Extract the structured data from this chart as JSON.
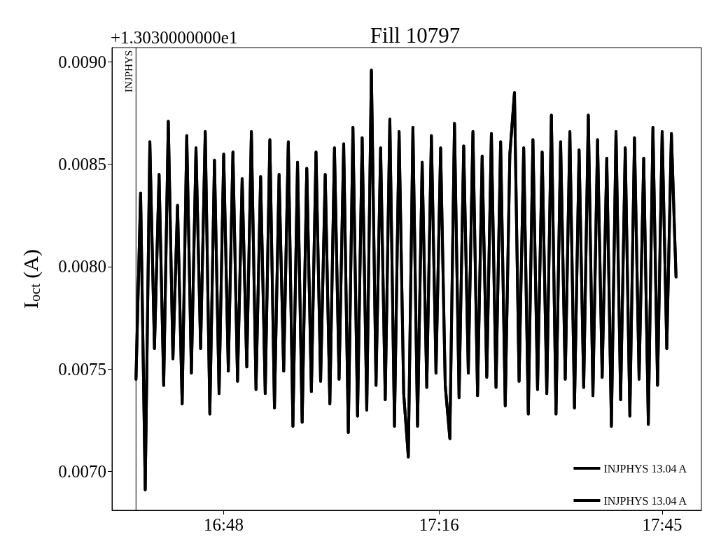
{
  "chart_data": {
    "type": "line",
    "title": "Fill 10797",
    "ylabel": "I$_{oct}$ (A)",
    "annotations": [
      "+1.3030000000e1"
    ],
    "x": [
      16.61,
      16.62,
      16.63,
      16.64,
      16.65,
      16.66,
      16.67,
      16.68,
      16.69,
      16.7,
      16.71,
      16.72,
      16.73,
      16.74,
      16.75,
      16.76,
      16.77,
      16.78,
      16.79,
      16.8,
      16.81,
      16.82,
      16.83,
      16.84,
      16.85,
      16.86,
      16.87,
      16.88,
      16.89,
      16.9,
      16.91,
      16.92,
      16.93,
      16.94,
      16.95,
      16.96,
      16.97,
      16.98,
      16.99,
      17.0,
      17.01,
      17.02,
      17.03,
      17.04,
      17.05,
      17.06,
      17.07,
      17.08,
      17.09,
      17.1,
      17.11,
      17.12,
      17.13,
      17.14,
      17.15,
      17.16,
      17.17,
      17.18,
      17.19,
      17.2,
      17.21,
      17.22,
      17.23,
      17.24,
      17.25,
      17.26,
      17.27,
      17.28,
      17.29,
      17.3,
      17.31,
      17.32,
      17.33,
      17.34,
      17.35,
      17.36,
      17.37,
      17.38,
      17.39,
      17.4,
      17.41,
      17.42,
      17.43,
      17.44,
      17.45,
      17.46,
      17.47,
      17.48,
      17.49,
      17.5,
      17.51,
      17.52,
      17.53,
      17.54,
      17.55,
      17.56,
      17.57,
      17.58,
      17.59,
      17.6,
      17.61,
      17.62,
      17.63,
      17.64,
      17.65,
      17.66,
      17.67,
      17.68,
      17.69,
      17.7,
      17.71,
      17.72,
      17.73,
      17.74,
      17.75,
      17.76,
      17.77,
      17.78
    ],
    "series": [
      {
        "name": "INJPHYS 13.04 A",
        "color": "#000000",
        "values": [
          0.00745,
          0.00836,
          0.00691,
          0.00861,
          0.0076,
          0.00845,
          0.00742,
          0.00871,
          0.00755,
          0.0083,
          0.00733,
          0.00864,
          0.00748,
          0.00858,
          0.0076,
          0.00866,
          0.00728,
          0.00852,
          0.00738,
          0.00855,
          0.00749,
          0.00856,
          0.00744,
          0.00843,
          0.00751,
          0.00866,
          0.0074,
          0.00844,
          0.00738,
          0.00862,
          0.00731,
          0.00845,
          0.00749,
          0.00861,
          0.00722,
          0.00851,
          0.00724,
          0.00848,
          0.00739,
          0.00856,
          0.00744,
          0.00845,
          0.00733,
          0.00858,
          0.00745,
          0.0086,
          0.00719,
          0.00868,
          0.00727,
          0.00863,
          0.0073,
          0.00896,
          0.00742,
          0.00858,
          0.00735,
          0.00872,
          0.00722,
          0.00866,
          0.00738,
          0.00707,
          0.00868,
          0.00722,
          0.00851,
          0.00741,
          0.00864,
          0.00748,
          0.00858,
          0.00742,
          0.00716,
          0.0087,
          0.00736,
          0.00859,
          0.00748,
          0.00866,
          0.00737,
          0.00854,
          0.00746,
          0.00865,
          0.00741,
          0.00861,
          0.00732,
          0.00855,
          0.00885,
          0.00744,
          0.00858,
          0.00728,
          0.00862,
          0.0074,
          0.00856,
          0.00738,
          0.00874,
          0.00728,
          0.00861,
          0.00745,
          0.00866,
          0.00731,
          0.00857,
          0.00741,
          0.00874,
          0.00737,
          0.00862,
          0.00746,
          0.00853,
          0.00722,
          0.00866,
          0.00735,
          0.00858,
          0.00727,
          0.00863,
          0.00745,
          0.00853,
          0.00723,
          0.00868,
          0.00742,
          0.00866,
          0.0076,
          0.00865,
          0.00795
        ]
      },
      {
        "name": "INJPHYS 13.04 A",
        "color": "#000000",
        "values": [
          0.00745,
          0.00836,
          0.00691,
          0.00861,
          0.0076,
          0.00845,
          0.00742,
          0.00871,
          0.00755,
          0.0083,
          0.00733,
          0.00864,
          0.00748,
          0.00858,
          0.0076,
          0.00866,
          0.00728,
          0.00852,
          0.00738,
          0.00855,
          0.00749,
          0.00856,
          0.00744,
          0.00843,
          0.00751,
          0.00866,
          0.0074,
          0.00844,
          0.00738,
          0.00862,
          0.00731,
          0.00845,
          0.00749,
          0.00861,
          0.00722,
          0.00851,
          0.00724,
          0.00848,
          0.00739,
          0.00856,
          0.00744,
          0.00845,
          0.00733,
          0.00858,
          0.00745,
          0.0086,
          0.00719,
          0.00868,
          0.00727,
          0.00863,
          0.0073,
          0.00896,
          0.00742,
          0.00858,
          0.00735,
          0.00872,
          0.00722,
          0.00866,
          0.00738,
          0.00707,
          0.00868,
          0.00722,
          0.00851,
          0.00741,
          0.00864,
          0.00748,
          0.00858,
          0.00742,
          0.00716,
          0.0087,
          0.00736,
          0.00859,
          0.00748,
          0.00866,
          0.00737,
          0.00854,
          0.00746,
          0.00865,
          0.00741,
          0.00861,
          0.00732,
          0.00855,
          0.00885,
          0.00744,
          0.00858,
          0.00728,
          0.00862,
          0.0074,
          0.00856,
          0.00738,
          0.00874,
          0.00728,
          0.00861,
          0.00745,
          0.00866,
          0.00731,
          0.00857,
          0.00741,
          0.00874,
          0.00737,
          0.00862,
          0.00746,
          0.00853,
          0.00722,
          0.00866,
          0.00735,
          0.00858,
          0.00727,
          0.00863,
          0.00745,
          0.00853,
          0.00723,
          0.00868,
          0.00742,
          0.00866,
          0.0076,
          0.00865,
          0.00795
        ]
      }
    ],
    "xlim": [
      16.558,
      17.835
    ],
    "xticks": [
      {
        "value": 16.8,
        "label": "16:48"
      },
      {
        "value": 17.2667,
        "label": "17:16"
      },
      {
        "value": 17.75,
        "label": "17:45"
      }
    ],
    "ylim": [
      0.00681,
      0.00907
    ],
    "yticks": [
      {
        "value": 0.007,
        "label": "0.0070"
      },
      {
        "value": 0.0075,
        "label": "0.0075"
      },
      {
        "value": 0.008,
        "label": "0.0080"
      },
      {
        "value": 0.0085,
        "label": "0.0085"
      },
      {
        "value": 0.009,
        "label": "0.0090"
      }
    ],
    "ref_lines": [
      {
        "axis": "x",
        "value": 16.61,
        "label": "INJPHYS",
        "color": "#000000"
      }
    ],
    "grid": false,
    "legend": "bottom right",
    "marker": "none",
    "line_style": "solid"
  }
}
